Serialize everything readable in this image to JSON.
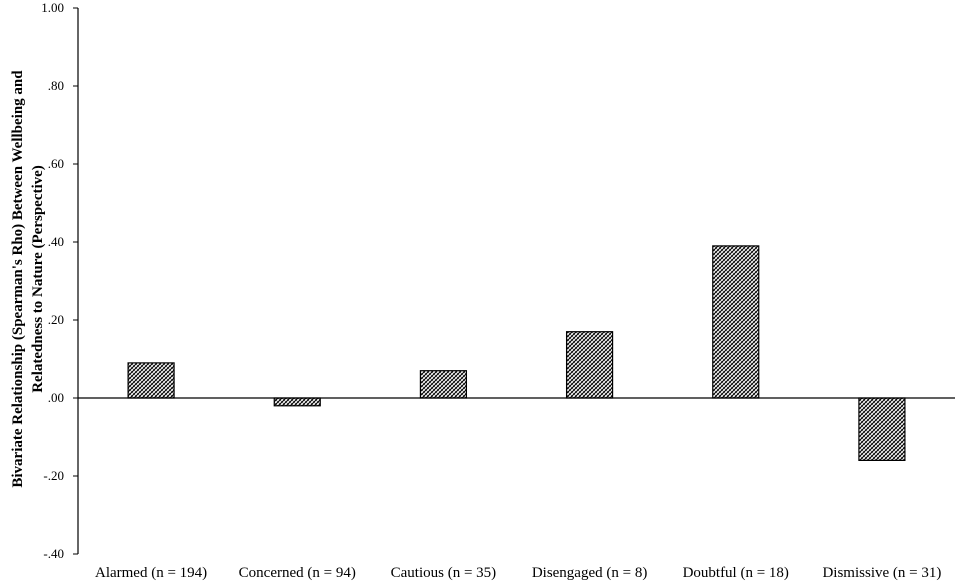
{
  "chart_data": {
    "type": "bar",
    "categories": [
      "Alarmed (n = 194)",
      "Concerned (n = 94)",
      "Cautious (n = 35)",
      "Disengaged (n = 8)",
      "Doubtful (n = 18)",
      "Dismissive (n = 31)"
    ],
    "values": [
      0.09,
      -0.02,
      0.07,
      0.17,
      0.39,
      -0.16
    ],
    "ylabel": [
      "Bivariate Relationship (Spearman's Rho) Between Wellbeing and",
      "Relatedness to Nature (Perspective)"
    ],
    "ylim": [
      -0.4,
      1.0
    ],
    "yticks": [
      1.0,
      0.8,
      0.6,
      0.4,
      0.2,
      0.0,
      -0.2,
      -0.4
    ],
    "ytick_labels": [
      "1.00",
      ".80",
      ".60",
      ".40",
      ".20",
      ".00",
      "-.20",
      "-.40"
    ],
    "grid": false,
    "bar_pattern": "diagonal-hatch",
    "bar_color": "#000000"
  }
}
